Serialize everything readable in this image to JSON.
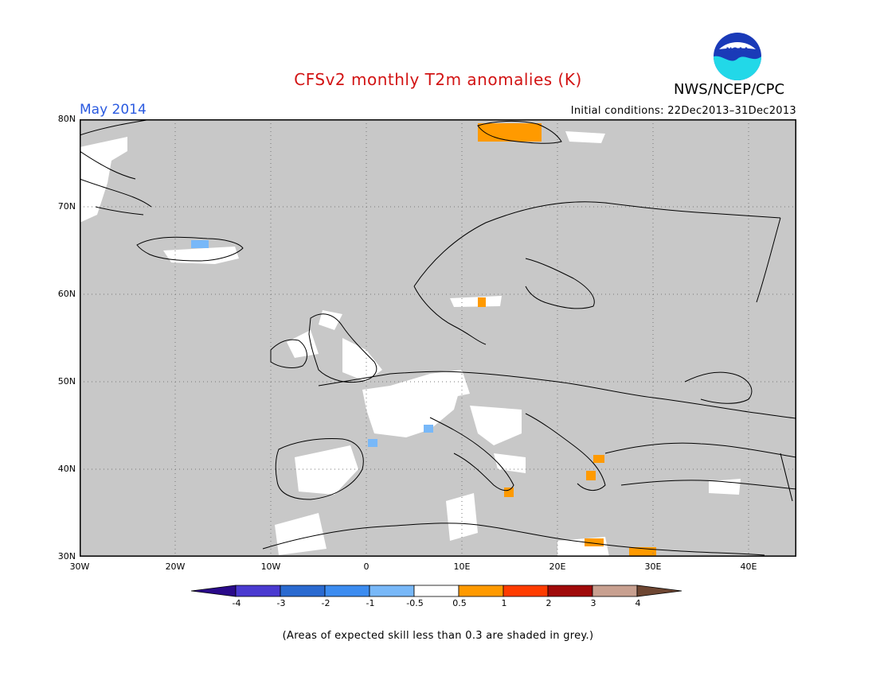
{
  "title": "CFSv2 monthly T2m anomalies (K)",
  "agency": "NWS/NCEP/CPC",
  "logo_text": "NOAA",
  "month": "May 2014",
  "initial_conditions": "Initial conditions: 22Dec2013–31Dec2013",
  "footnote": "(Areas of expected skill less than 0.3 are shaded in grey.)",
  "map": {
    "lat_labels": [
      "80N",
      "70N",
      "60N",
      "50N",
      "40N",
      "30N"
    ],
    "lon_labels": [
      "30W",
      "20W",
      "10W",
      "0",
      "10E",
      "20E",
      "30E",
      "40E"
    ],
    "extent": {
      "lon_min": -30,
      "lon_max": 45,
      "lat_min": 30,
      "lat_max": 80
    },
    "grid": "dotted",
    "background_color": "#c8c8c8"
  },
  "colorbar": {
    "labels": [
      "-4",
      "-3",
      "-2",
      "-1",
      "-0.5",
      "0.5",
      "1",
      "2",
      "3",
      "4"
    ],
    "colors": [
      "#2a0a8a",
      "#4a3ad0",
      "#2a6ad0",
      "#3c8cf0",
      "#78b8f8",
      "#ffffff",
      "#ff9a00",
      "#ff3c00",
      "#a00a0a",
      "#c8a090",
      "#6e4632"
    ]
  },
  "anomaly_regions": [
    {
      "name": "svalbard-orange-1",
      "color": "#ff9a00"
    },
    {
      "name": "iceland-blue",
      "color": "#78b8f8"
    },
    {
      "name": "sweden-orange",
      "color": "#ff9a00"
    },
    {
      "name": "france-blue",
      "color": "#78b8f8"
    },
    {
      "name": "alps-blue",
      "color": "#78b8f8"
    },
    {
      "name": "sicily-orange",
      "color": "#ff9a00"
    },
    {
      "name": "greece-orange-1",
      "color": "#ff9a00"
    },
    {
      "name": "greece-orange-2",
      "color": "#ff9a00"
    },
    {
      "name": "crete-orange",
      "color": "#ff9a00"
    },
    {
      "name": "egypt-orange",
      "color": "#ff9a00"
    }
  ]
}
